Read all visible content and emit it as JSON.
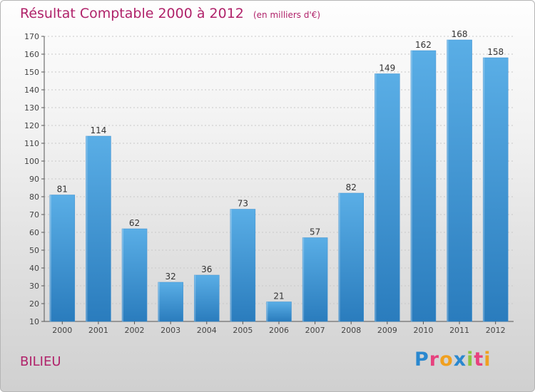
{
  "chart_data": {
    "type": "bar",
    "title": "Résultat Comptable 2000 à 2012",
    "subtitle": "(en milliers d'€)",
    "categories": [
      "2000",
      "2001",
      "2002",
      "2003",
      "2004",
      "2005",
      "2006",
      "2007",
      "2008",
      "2009",
      "2010",
      "2011",
      "2012"
    ],
    "values": [
      81,
      114,
      62,
      32,
      36,
      73,
      21,
      57,
      82,
      149,
      162,
      168,
      158
    ],
    "ylim": [
      10,
      170
    ],
    "yticks": [
      10,
      20,
      30,
      40,
      50,
      60,
      70,
      80,
      90,
      100,
      110,
      120,
      130,
      140,
      150,
      160,
      170
    ],
    "xlabel": "",
    "ylabel": "",
    "grid": true,
    "bar_color_top": "#5aaee6",
    "bar_color_bottom": "#2a7cbd"
  },
  "location": "BILIEU",
  "logo": {
    "letters": [
      "P",
      "r",
      "o",
      "x",
      "i",
      "t",
      "i"
    ],
    "colors": [
      "#2a88cf",
      "#e7417e",
      "#f0a020",
      "#2a88cf",
      "#8cc63f",
      "#e7417e",
      "#f0a020"
    ]
  }
}
